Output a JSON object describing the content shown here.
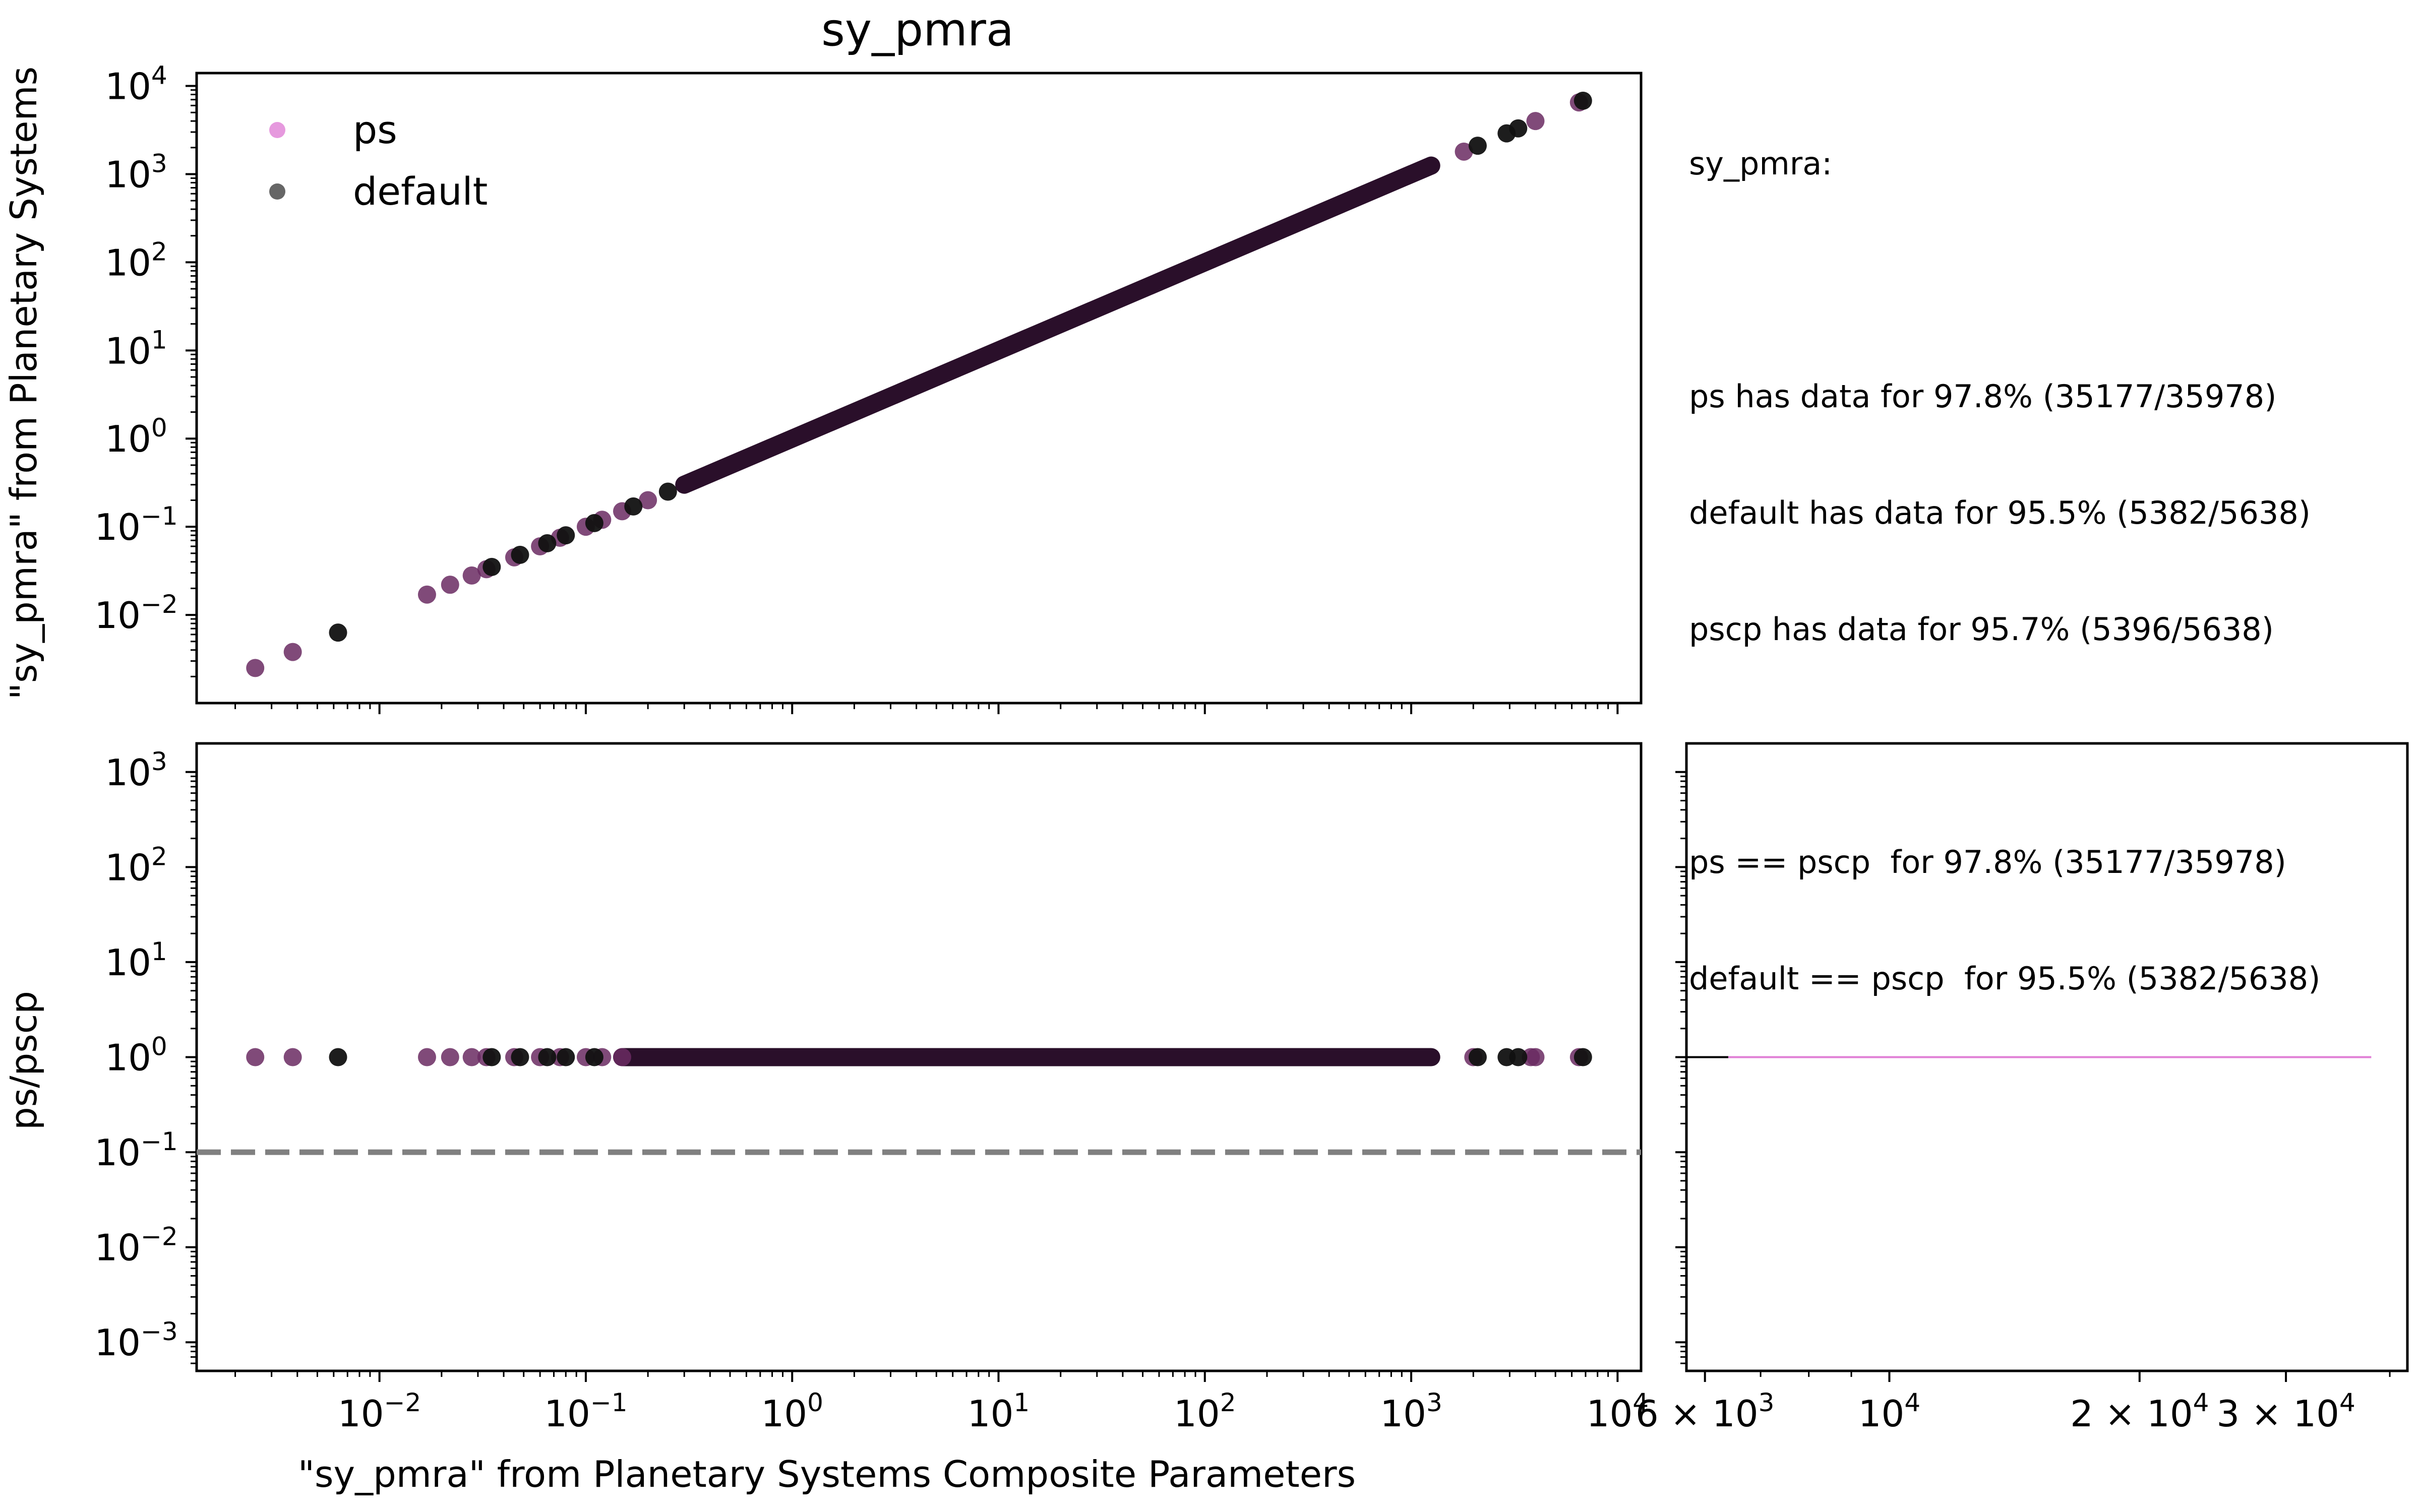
{
  "chart_data": [
    {
      "type": "scatter",
      "title": "sy_pmra",
      "xlabel": "",
      "ylabel": "\"sy_pmra\" from Planetary Systems",
      "xscale": "log",
      "yscale": "log",
      "xlim": [
        0.0013,
        13000
      ],
      "ylim": [
        0.001,
        14000
      ],
      "xticks": [
        {
          "base": "10",
          "exp": "−2",
          "value": 0.01
        },
        {
          "base": "10",
          "exp": "−1",
          "value": 0.1
        },
        {
          "base": "10",
          "exp": "0",
          "value": 1
        },
        {
          "base": "10",
          "exp": "1",
          "value": 10
        },
        {
          "base": "10",
          "exp": "2",
          "value": 100
        },
        {
          "base": "10",
          "exp": "3",
          "value": 1000
        },
        {
          "base": "10",
          "exp": "4",
          "value": 10000
        }
      ],
      "yticks": [
        {
          "base": "10",
          "exp": "−2",
          "value": 0.01
        },
        {
          "base": "10",
          "exp": "−1",
          "value": 0.1
        },
        {
          "base": "10",
          "exp": "0",
          "value": 1
        },
        {
          "base": "10",
          "exp": "1",
          "value": 10
        },
        {
          "base": "10",
          "exp": "2",
          "value": 100
        },
        {
          "base": "10",
          "exp": "3",
          "value": 1000
        },
        {
          "base": "10",
          "exp": "4",
          "value": 10000
        }
      ],
      "legend_position": "top-left",
      "series": [
        {
          "name": "ps",
          "color": "#e07fd6",
          "points": [
            [
              0.0025,
              0.0025
            ],
            [
              0.0038,
              0.0038
            ],
            [
              0.017,
              0.017
            ],
            [
              0.022,
              0.022
            ],
            [
              0.028,
              0.028
            ],
            [
              0.033,
              0.033
            ],
            [
              0.045,
              0.045
            ],
            [
              0.06,
              0.06
            ],
            [
              0.075,
              0.075
            ],
            [
              0.1,
              0.1
            ],
            [
              0.12,
              0.12
            ],
            [
              0.15,
              0.15
            ],
            [
              0.2,
              0.2
            ],
            [
              1800,
              1800
            ],
            [
              4000,
              4000
            ],
            [
              6500,
              6500
            ]
          ]
        },
        {
          "name": "default",
          "color": "#000000",
          "points": [
            [
              0.0063,
              0.0063
            ],
            [
              0.035,
              0.035
            ],
            [
              0.048,
              0.048
            ],
            [
              0.065,
              0.065
            ],
            [
              0.08,
              0.08
            ],
            [
              0.11,
              0.11
            ],
            [
              0.17,
              0.17
            ],
            [
              0.25,
              0.25
            ],
            [
              2100,
              2100
            ],
            [
              2900,
              2900
            ],
            [
              3300,
              3300
            ],
            [
              6800,
              6800
            ]
          ]
        },
        {
          "name": "",
          "color": "#000000",
          "line_range": [
            0.3,
            1250
          ]
        }
      ]
    },
    {
      "type": "scatter",
      "title": "",
      "xlabel": "\"sy_pmra\" from Planetary Systems Composite Parameters",
      "ylabel": "ps/pscp",
      "xscale": "log",
      "yscale": "log",
      "xlim": [
        0.0013,
        13000
      ],
      "ylim": [
        0.0005,
        2000
      ],
      "xticks": [
        {
          "base": "10",
          "exp": "−2",
          "value": 0.01
        },
        {
          "base": "10",
          "exp": "−1",
          "value": 0.1
        },
        {
          "base": "10",
          "exp": "0",
          "value": 1
        },
        {
          "base": "10",
          "exp": "1",
          "value": 10
        },
        {
          "base": "10",
          "exp": "2",
          "value": 100
        },
        {
          "base": "10",
          "exp": "3",
          "value": 1000
        },
        {
          "base": "10",
          "exp": "4",
          "value": 10000
        }
      ],
      "yticks": [
        {
          "base": "10",
          "exp": "−3",
          "value": 0.001
        },
        {
          "base": "10",
          "exp": "−2",
          "value": 0.01
        },
        {
          "base": "10",
          "exp": "−1",
          "value": 0.1
        },
        {
          "base": "10",
          "exp": "0",
          "value": 1
        },
        {
          "base": "10",
          "exp": "1",
          "value": 10
        },
        {
          "base": "10",
          "exp": "2",
          "value": 100
        },
        {
          "base": "10",
          "exp": "3",
          "value": 1000
        }
      ],
      "reference_line": {
        "y": 0.1,
        "style": "dashed",
        "color": "#808080"
      },
      "series": [
        {
          "name": "ps",
          "color": "#e07fd6",
          "points": [
            [
              0.0025,
              1
            ],
            [
              0.0038,
              1
            ],
            [
              0.017,
              1
            ],
            [
              0.022,
              1
            ],
            [
              0.028,
              1
            ],
            [
              0.033,
              1
            ],
            [
              0.045,
              1
            ],
            [
              0.06,
              1
            ],
            [
              0.075,
              1
            ],
            [
              0.1,
              1
            ],
            [
              0.12,
              1
            ],
            [
              0.15,
              1
            ],
            [
              2000,
              1
            ],
            [
              3800,
              1
            ],
            [
              4000,
              1
            ],
            [
              6500,
              1
            ]
          ]
        },
        {
          "name": "default",
          "color": "#000000",
          "points": [
            [
              0.0063,
              1
            ],
            [
              0.035,
              1
            ],
            [
              0.048,
              1
            ],
            [
              0.065,
              1
            ],
            [
              0.08,
              1
            ],
            [
              0.11,
              1
            ],
            [
              2100,
              1
            ],
            [
              2900,
              1
            ],
            [
              3300,
              1
            ],
            [
              6800,
              1
            ]
          ]
        },
        {
          "name": "",
          "color": "#000000",
          "line_range": [
            0.15,
            1250
          ]
        }
      ]
    },
    {
      "type": "line",
      "title": "",
      "xscale": "log",
      "xlim": [
        5700,
        42000
      ],
      "ylim": [
        0.0005,
        2000
      ],
      "xticks": [
        {
          "mant": "6",
          "exp": "3",
          "value": 6000
        },
        {
          "mant": "",
          "exp": "4",
          "value": 10000
        },
        {
          "mant": "2",
          "exp": "4",
          "value": 20000
        },
        {
          "mant": "3",
          "exp": "4",
          "value": 30000
        }
      ],
      "series": [
        {
          "name": "ps",
          "color": "#e07fd6",
          "x": [
            6400,
            38000
          ],
          "y": [
            1,
            1
          ]
        },
        {
          "name": "default",
          "color": "#000000",
          "x": [
            5700,
            6400
          ],
          "y": [
            1,
            1
          ]
        }
      ]
    }
  ],
  "summary": {
    "lines": [
      "sy_pmra:",
      "",
      "ps has data for 97.8% (35177/35978)",
      "default has data for 95.5% (5382/5638)",
      "pscp has data for 95.7% (5396/5638)",
      "",
      "ps == pscp  for 97.8% (35177/35978)",
      "default == pscp  for 95.5% (5382/5638)"
    ]
  }
}
